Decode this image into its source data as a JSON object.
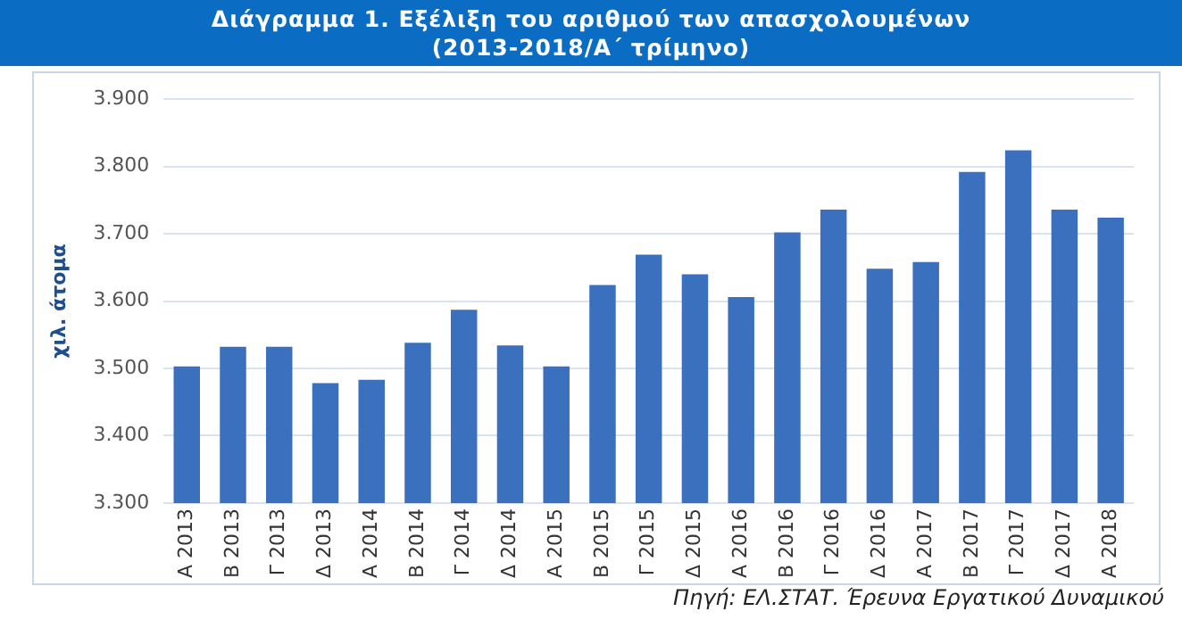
{
  "chart_data": {
    "type": "bar",
    "title": "Διάγραμμα  1. Εξέλιξη του αριθμού των απασχολουμένων\n(2013-2018/Α΄ τρίμηνο)",
    "ylabel": "χιλ. άτομα",
    "categories": [
      "Α 2013",
      "Β 2013",
      "Γ 2013",
      "Δ 2013",
      "Α 2014",
      "Β 2014",
      "Γ 2014",
      "Δ 2014",
      "Α 2015",
      "Β 2015",
      "Γ 2015",
      "Δ 2015",
      "Α 2016",
      "Β 2016",
      "Γ 2016",
      "Δ 2016",
      "Α 2017",
      "Β 2017",
      "Γ 2017",
      "Δ 2017",
      "Α 2018"
    ],
    "values": [
      3503,
      3532,
      3532,
      3478,
      3483,
      3538,
      3587,
      3534,
      3503,
      3624,
      3669,
      3640,
      3606,
      3702,
      3736,
      3648,
      3658,
      3792,
      3824,
      3736,
      3724
    ],
    "color": "#3a70bd",
    "ylim": [
      3300,
      3900
    ],
    "yticks": [
      {
        "value": 3300,
        "label": "3.300"
      },
      {
        "value": 3400,
        "label": "3.400"
      },
      {
        "value": 3500,
        "label": "3.500"
      },
      {
        "value": 3600,
        "label": "3.600"
      },
      {
        "value": 3700,
        "label": "3.700"
      },
      {
        "value": 3800,
        "label": "3.800"
      },
      {
        "value": 3900,
        "label": "3.900"
      }
    ],
    "grid": "y",
    "legend": false,
    "annotations": [
      "Πηγή: ΕΛ.ΣΤΑΤ. Έρευνα Εργατικού Δυναμικού"
    ]
  }
}
